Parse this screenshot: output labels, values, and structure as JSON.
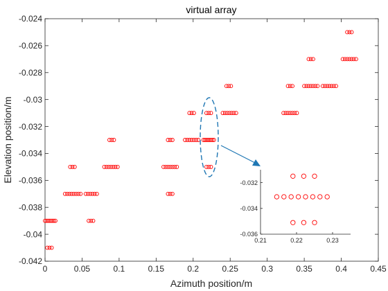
{
  "chart_data": [
    {
      "type": "scatter",
      "title": "virtual array",
      "xlabel": "Azimuth position/m",
      "ylabel": "Elevation position/m",
      "xlim": [
        0,
        0.45
      ],
      "ylim": [
        -0.042,
        -0.024
      ],
      "xticks": [
        0,
        0.05,
        0.1,
        0.15,
        0.2,
        0.25,
        0.3,
        0.35,
        0.4,
        0.45
      ],
      "xtick_labels": [
        "0",
        "0.05",
        "0.1",
        "0.15",
        "0.2",
        "0.25",
        "0.3",
        "0.35",
        "0.4",
        "0.45"
      ],
      "yticks": [
        -0.042,
        -0.04,
        -0.038,
        -0.036,
        -0.034,
        -0.032,
        -0.03,
        -0.028,
        -0.026,
        -0.024
      ],
      "ytick_labels": [
        "-0.042",
        "-0.04",
        "-0.038",
        "-0.036",
        "-0.034",
        "-0.032",
        "-0.03",
        "-0.028",
        "-0.026",
        "-0.024"
      ],
      "grid": false,
      "marker": "o",
      "marker_color": "#ff0000",
      "series": [
        {
          "rows": [
            {
              "y": -0.039,
              "x": [
                0.0,
                0.002,
                0.004,
                0.006,
                0.008,
                0.01,
                0.012,
                0.014
              ]
            },
            {
              "y": -0.041,
              "x": [
                0.003,
                0.006,
                0.009
              ]
            },
            {
              "y": -0.037,
              "x": [
                0.027,
                0.03,
                0.033,
                0.036,
                0.039,
                0.042,
                0.045,
                0.048
              ]
            },
            {
              "y": -0.035,
              "x": [
                0.034,
                0.037,
                0.04
              ]
            },
            {
              "y": -0.037,
              "x": [
                0.055,
                0.058,
                0.061,
                0.064,
                0.067,
                0.07
              ]
            },
            {
              "y": -0.039,
              "x": [
                0.059,
                0.062,
                0.065
              ]
            },
            {
              "y": -0.035,
              "x": [
                0.08,
                0.083,
                0.086,
                0.089,
                0.092,
                0.095,
                0.098
              ]
            },
            {
              "y": -0.033,
              "x": [
                0.087,
                0.09,
                0.093
              ]
            },
            {
              "y": -0.035,
              "x": [
                0.16,
                0.163,
                0.166,
                0.169,
                0.172,
                0.175,
                0.178
              ]
            },
            {
              "y": -0.033,
              "x": [
                0.166,
                0.169,
                0.172
              ]
            },
            {
              "y": -0.037,
              "x": [
                0.166,
                0.169,
                0.172
              ]
            },
            {
              "y": -0.033,
              "x": [
                0.189,
                0.192,
                0.195,
                0.198,
                0.201,
                0.204,
                0.207
              ]
            },
            {
              "y": -0.031,
              "x": [
                0.195,
                0.198,
                0.201
              ]
            },
            {
              "y": -0.033,
              "x": [
                0.214,
                0.216,
                0.218,
                0.22,
                0.222,
                0.224,
                0.226,
                0.228
              ]
            },
            {
              "y": -0.031,
              "x": [
                0.218,
                0.221,
                0.224
              ]
            },
            {
              "y": -0.035,
              "x": [
                0.218,
                0.221,
                0.224
              ]
            },
            {
              "y": -0.031,
              "x": [
                0.24,
                0.243,
                0.246,
                0.249,
                0.252,
                0.255,
                0.258
              ]
            },
            {
              "y": -0.029,
              "x": [
                0.245,
                0.248,
                0.251
              ]
            },
            {
              "y": -0.031,
              "x": [
                0.322,
                0.325,
                0.328,
                0.331,
                0.334,
                0.337,
                0.34
              ]
            },
            {
              "y": -0.029,
              "x": [
                0.328,
                0.331,
                0.334
              ]
            },
            {
              "y": -0.029,
              "x": [
                0.35,
                0.353,
                0.356,
                0.359,
                0.362,
                0.365,
                0.368
              ]
            },
            {
              "y": -0.027,
              "x": [
                0.356,
                0.359,
                0.362
              ]
            },
            {
              "y": -0.029,
              "x": [
                0.375,
                0.378,
                0.381,
                0.384,
                0.387,
                0.39,
                0.393
              ]
            },
            {
              "y": -0.027,
              "x": [
                0.402,
                0.405,
                0.408,
                0.411,
                0.414,
                0.417,
                0.42
              ]
            },
            {
              "y": -0.025,
              "x": [
                0.408,
                0.411,
                0.414
              ]
            }
          ]
        }
      ],
      "annotation": {
        "type": "dashed-ellipse-with-arrow",
        "color": "#1f77b4",
        "center": {
          "x": 0.219,
          "y": -0.0335
        },
        "target": "zoom-inset"
      }
    },
    {
      "type": "scatter",
      "role": "zoom-inset",
      "xlim": [
        0.21,
        0.235
      ],
      "ylim": [
        -0.036,
        -0.031
      ],
      "xticks": [
        0.21,
        0.22,
        0.23
      ],
      "xtick_labels": [
        "0.21",
        "0.22",
        "0.23"
      ],
      "yticks": [
        -0.036,
        -0.034,
        -0.032
      ],
      "ytick_labels": [
        "-0.036",
        "-0.034",
        "-0.032"
      ],
      "grid": false,
      "marker": "o",
      "marker_color": "#ff0000",
      "series": [
        {
          "rows": [
            {
              "y": -0.0315,
              "x": [
                0.219,
                0.222,
                0.225
              ]
            },
            {
              "y": -0.0331,
              "x": [
                0.2145,
                0.2165,
                0.2185,
                0.2205,
                0.2225,
                0.2245,
                0.2265,
                0.2285
              ]
            },
            {
              "y": -0.0351,
              "x": [
                0.219,
                0.222,
                0.225
              ]
            }
          ]
        }
      ]
    }
  ]
}
